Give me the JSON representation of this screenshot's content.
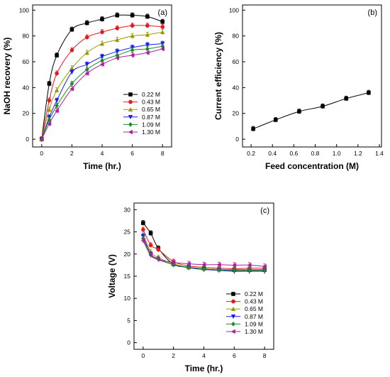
{
  "chart_data": [
    {
      "panel": "(a)",
      "type": "line",
      "xlabel": "Time (hr.)",
      "ylabel": "NaOH recovery (%)",
      "xlim": [
        -0.6,
        8.6
      ],
      "ylim": [
        -6,
        104
      ],
      "xticks": [
        0,
        2,
        4,
        6,
        8
      ],
      "yticks": [
        0,
        20,
        40,
        60,
        80,
        100
      ],
      "legend": "bottom-right",
      "x": [
        0,
        0.5,
        1,
        2,
        3,
        4,
        5,
        6,
        7,
        8
      ],
      "series": [
        {
          "name": "0.22 M",
          "marker": "square",
          "color": "#000000",
          "values": [
            0,
            43,
            65,
            85,
            90,
            93,
            96,
            96,
            95,
            91
          ]
        },
        {
          "name": "0.43 M",
          "marker": "circle",
          "color": "#e8191e",
          "values": [
            0,
            30,
            51,
            69,
            79,
            83,
            86,
            88,
            88,
            87
          ]
        },
        {
          "name": "0.65 M",
          "marker": "triangle-up",
          "color": "#9a9a00",
          "values": [
            0,
            23,
            38,
            55,
            67,
            74,
            77,
            80,
            81,
            83
          ]
        },
        {
          "name": "0.87 M",
          "marker": "triangle-down",
          "color": "#1a1aff",
          "values": [
            0,
            17,
            30,
            52,
            58,
            64,
            68,
            71,
            73,
            74
          ]
        },
        {
          "name": "1.09 M",
          "marker": "diamond",
          "color": "#1b8a2a",
          "values": [
            0,
            15,
            26,
            43,
            54,
            61,
            65,
            69,
            70,
            72
          ]
        },
        {
          "name": "1.30 M",
          "marker": "triangle-left",
          "color": "#a6209f",
          "values": [
            0,
            12,
            22,
            39,
            51,
            58,
            63,
            65,
            67,
            70
          ]
        }
      ]
    },
    {
      "panel": "(b)",
      "type": "line",
      "xlabel": "Feed concentration (M)",
      "ylabel": "Current efficiency (%)",
      "xlim": [
        0.12,
        1.42
      ],
      "ylim": [
        -6,
        104
      ],
      "xticks": [
        0.2,
        0.4,
        0.6,
        0.8,
        1.0,
        1.2,
        1.4
      ],
      "xtick_labels": [
        "0.2",
        "0.4",
        "0.6",
        "0.8",
        "1.0",
        "1.2",
        "1.4"
      ],
      "yticks": [
        0,
        20,
        40,
        60,
        80,
        100
      ],
      "x": [
        0.22,
        0.43,
        0.65,
        0.87,
        1.09,
        1.3
      ],
      "series": [
        {
          "marker": "square",
          "color": "#000000",
          "values": [
            8,
            15,
            21.5,
            25.5,
            31.5,
            36
          ]
        }
      ]
    },
    {
      "panel": "(c)",
      "type": "line",
      "xlabel": "Time (hr.)",
      "ylabel": "Voltage (V)",
      "xlim": [
        -0.6,
        8.6
      ],
      "ylim": [
        -1.5,
        31.5
      ],
      "xticks": [
        0,
        2,
        4,
        6,
        8
      ],
      "yticks": [
        0,
        5,
        10,
        15,
        20,
        25,
        30
      ],
      "legend": "bottom-right",
      "x": [
        0,
        0.5,
        1,
        2,
        3,
        4,
        5,
        6,
        7,
        8
      ],
      "series": [
        {
          "name": "0.22 M",
          "marker": "square",
          "color": "#000000",
          "values": [
            27,
            24.7,
            21.3,
            17.7,
            17.0,
            16.7,
            16.5,
            16.4,
            16.4,
            16.4
          ]
        },
        {
          "name": "0.43 M",
          "marker": "circle",
          "color": "#e8191e",
          "values": [
            25.5,
            22,
            21,
            18.3,
            17.3,
            17.0,
            16.8,
            16.7,
            16.8,
            16.8
          ]
        },
        {
          "name": "0.65 M",
          "marker": "triangle-up",
          "color": "#9a9a00",
          "values": [
            24.5,
            20.5,
            19.2,
            17.8,
            17.0,
            16.7,
            16.5,
            16.5,
            16.5,
            16.5
          ]
        },
        {
          "name": "0.87 M",
          "marker": "triangle-down",
          "color": "#1a1aff",
          "values": [
            24,
            20,
            18.8,
            17.6,
            16.9,
            16.5,
            16.3,
            16.1,
            16.1,
            16.1
          ]
        },
        {
          "name": "1.09 M",
          "marker": "diamond",
          "color": "#1b8a2a",
          "values": [
            23.5,
            20,
            18.9,
            17.6,
            17.0,
            16.6,
            16.4,
            16.3,
            16.3,
            16.3
          ]
        },
        {
          "name": "1.30 M",
          "marker": "triangle-left",
          "color": "#a6209f",
          "values": [
            23,
            19.7,
            18.8,
            18.1,
            17.8,
            17.6,
            17.6,
            17.5,
            17.5,
            17.2
          ]
        }
      ]
    }
  ]
}
